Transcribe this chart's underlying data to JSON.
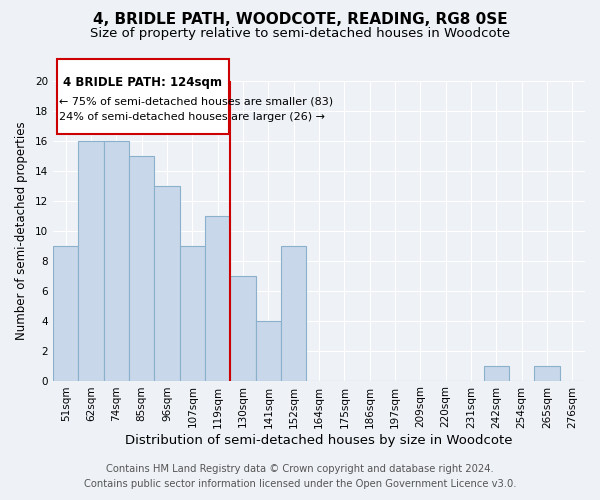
{
  "title": "4, BRIDLE PATH, WOODCOTE, READING, RG8 0SE",
  "subtitle": "Size of property relative to semi-detached houses in Woodcote",
  "xlabel": "Distribution of semi-detached houses by size in Woodcote",
  "ylabel": "Number of semi-detached properties",
  "categories": [
    "51sqm",
    "62sqm",
    "74sqm",
    "85sqm",
    "96sqm",
    "107sqm",
    "119sqm",
    "130sqm",
    "141sqm",
    "152sqm",
    "164sqm",
    "175sqm",
    "186sqm",
    "197sqm",
    "209sqm",
    "220sqm",
    "231sqm",
    "242sqm",
    "254sqm",
    "265sqm",
    "276sqm"
  ],
  "values": [
    9,
    16,
    16,
    15,
    13,
    9,
    11,
    7,
    4,
    9,
    0,
    0,
    0,
    0,
    0,
    0,
    0,
    1,
    0,
    1,
    0
  ],
  "bar_color": "#c8d8ea",
  "bar_edgecolor": "#8ab0cc",
  "ylim": [
    0,
    20
  ],
  "yticks": [
    0,
    2,
    4,
    6,
    8,
    10,
    12,
    14,
    16,
    18,
    20
  ],
  "property_line_x": 6.5,
  "property_line_color": "#cc0000",
  "annotation_title": "4 BRIDLE PATH: 124sqm",
  "annotation_line1": "← 75% of semi-detached houses are smaller (83)",
  "annotation_line2": "24% of semi-detached houses are larger (26) →",
  "annotation_box_color": "#ffffff",
  "annotation_box_edgecolor": "#cc0000",
  "footer_line1": "Contains HM Land Registry data © Crown copyright and database right 2024.",
  "footer_line2": "Contains public sector information licensed under the Open Government Licence v3.0.",
  "background_color": "#eef2f7",
  "grid_color": "#ffffff",
  "title_fontsize": 11,
  "subtitle_fontsize": 9.5,
  "xlabel_fontsize": 9.5,
  "ylabel_fontsize": 8.5,
  "tick_fontsize": 7.5,
  "footer_fontsize": 7.2
}
